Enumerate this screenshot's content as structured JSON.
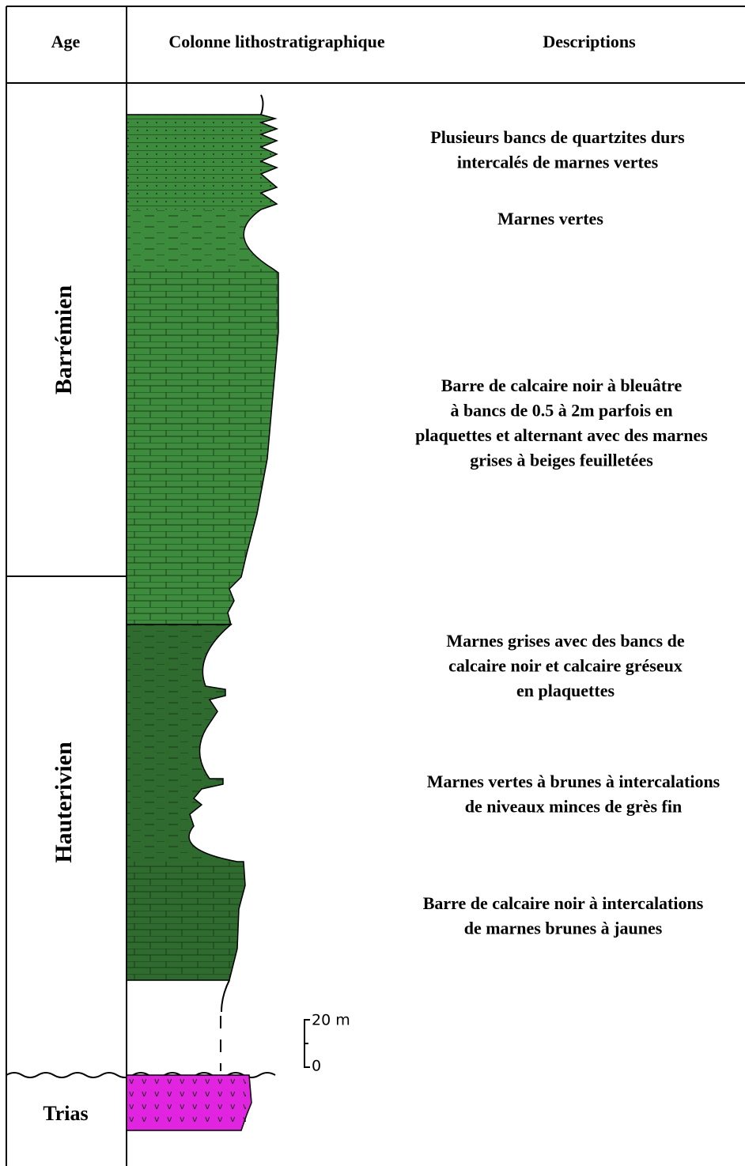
{
  "header": {
    "age": "Age",
    "column": "Colonne lithostratigraphique",
    "descriptions": "Descriptions"
  },
  "ages": [
    "Barrémien",
    "Hauterivien",
    "Trias"
  ],
  "descriptions": [
    [
      "Plusieurs bancs de quartzites durs",
      "intercalés de marnes vertes"
    ],
    [
      "Marnes vertes"
    ],
    [
      "Barre de calcaire noir à bleuâtre",
      "à bancs de 0.5 à 2m parfois en",
      "plaquettes et alternant avec des marnes",
      "grises à beiges feuilletées"
    ],
    [
      "Marnes grises avec des bancs de",
      "calcaire noir et calcaire gréseux",
      "en plaquettes"
    ],
    [
      "Marnes vertes à brunes à intercalations",
      "de niveaux minces de grès fin"
    ],
    [
      "Barre de calcaire noir à intercalations",
      "de marnes brunes à jaunes"
    ]
  ],
  "scale": {
    "top": "20 m",
    "bottom": "0"
  }
}
